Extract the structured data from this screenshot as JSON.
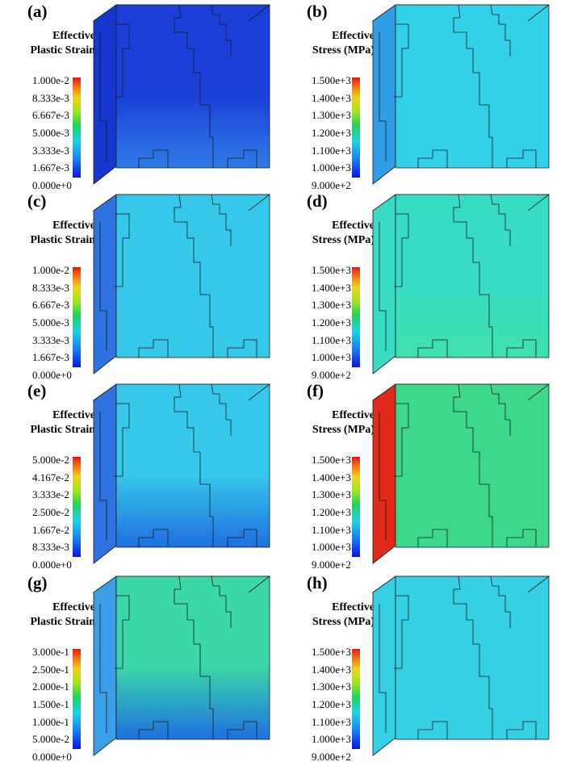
{
  "panels": [
    {
      "label": "(a)",
      "title_line1": "Effective",
      "title_line2": "Plastic Strain",
      "ticks": [
        "1.000e-2",
        "8.333e-3",
        "6.667e-3",
        "5.000e-3",
        "3.333e-3",
        "1.667e-3",
        "0.000e+0"
      ],
      "colors": {
        "front": "#1b3fd8",
        "bottom": "#2f7ce8",
        "top": "#1230c8",
        "side": "#1637d0"
      }
    },
    {
      "label": "(b)",
      "title_line1": "Effective",
      "title_line2": "Stress (MPa)",
      "ticks": [
        "1.500e+3",
        "1.400e+3",
        "1.300e+3",
        "1.200e+3",
        "1.100e+3",
        "1.000e+3",
        "9.000e+2"
      ],
      "colors": {
        "front": "#33d0ea",
        "bottom": "#33d0ea",
        "top": "#36c8ea",
        "side": "#2f9ee6"
      }
    },
    {
      "label": "(c)",
      "title_line1": "Effective",
      "title_line2": "Plastic Strain",
      "ticks": [
        "1.000e-2",
        "8.333e-3",
        "6.667e-3",
        "5.000e-3",
        "3.333e-3",
        "1.667e-3",
        "0.000e+0"
      ],
      "colors": {
        "front": "#36c8ea",
        "bottom": "#36c8ea",
        "top": "#3a9fe8",
        "side": "#2f73e0"
      }
    },
    {
      "label": "(d)",
      "title_line1": "Effective",
      "title_line2": "Stress (MPa)",
      "ticks": [
        "1.500e+3",
        "1.400e+3",
        "1.300e+3",
        "1.200e+3",
        "1.100e+3",
        "1.000e+3",
        "9.000e+2"
      ],
      "colors": {
        "front": "#38dcc4",
        "bottom": "#3fe0ae",
        "top": "#36d6d4",
        "side": "#38dcc4"
      }
    },
    {
      "label": "(e)",
      "title_line1": "Effective",
      "title_line2": "Plastic Strain",
      "ticks": [
        "5.000e-2",
        "4.167e-2",
        "3.333e-2",
        "2.500e-2",
        "1.667e-2",
        "8.333e-3",
        "0.000e+0"
      ],
      "colors": {
        "front": "#36c8ea",
        "bottom": "#1f70e0",
        "top": "#4ee08a",
        "side": "#2f73e0"
      }
    },
    {
      "label": "(f)",
      "title_line1": "Effective",
      "title_line2": "Stress (MPa)",
      "ticks": [
        "1.500e+3",
        "1.400e+3",
        "1.300e+3",
        "1.200e+3",
        "1.100e+3",
        "1.000e+3",
        "9.000e+2"
      ],
      "colors": {
        "front": "#3ed88a",
        "bottom": "#3ed88a",
        "top": "#3ed88a",
        "side": "#e22a1a"
      }
    },
    {
      "label": "(g)",
      "title_line1": "Effective",
      "title_line2": "Plastic Strain",
      "ticks": [
        "3.000e-1",
        "2.500e-1",
        "2.000e-1",
        "1.500e-1",
        "1.000e-1",
        "5.000e-2",
        "0.000e+0"
      ],
      "colors": {
        "front": "#3ad7a8",
        "bottom": "#1f70e0",
        "top": "#5ee07a",
        "side": "#3a9fe8"
      }
    },
    {
      "label": "(h)",
      "title_line1": "Effective",
      "title_line2": "Stress (MPa)",
      "ticks": [
        "1.500e+3",
        "1.400e+3",
        "1.300e+3",
        "1.200e+3",
        "1.100e+3",
        "1.000e+3",
        "9.000e+2"
      ],
      "colors": {
        "front": "#36d0e4",
        "bottom": "#36d0e4",
        "top": "#38d8c0",
        "side": "#36d0e4"
      }
    }
  ]
}
